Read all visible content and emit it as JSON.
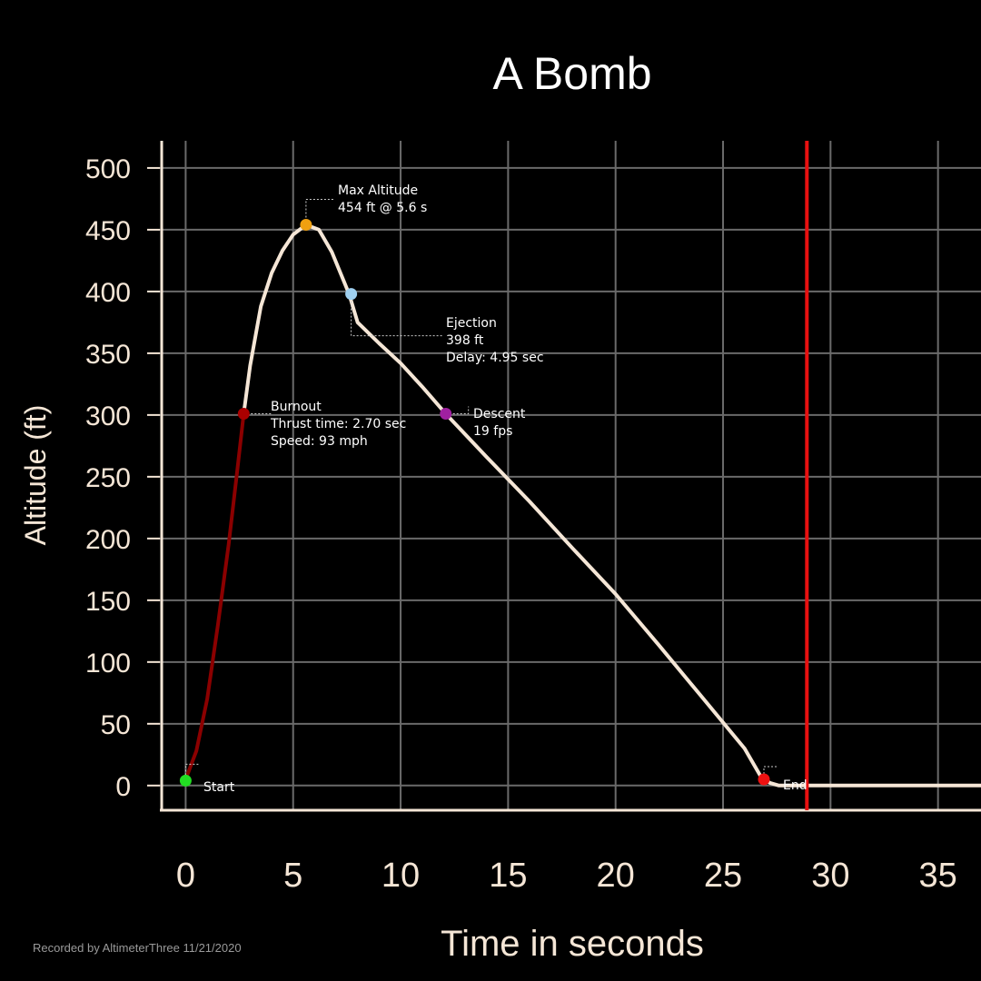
{
  "chart_data": {
    "type": "line",
    "title": "A Bomb",
    "xlabel": "Time in seconds",
    "ylabel": "Altitude (ft)",
    "xlim": [
      -1.2,
      37
    ],
    "ylim": [
      -20,
      522
    ],
    "xticks": [
      0,
      5,
      10,
      15,
      20,
      25,
      30,
      35
    ],
    "yticks": [
      0,
      50,
      100,
      150,
      200,
      250,
      300,
      350,
      400,
      450,
      500
    ],
    "grid": true,
    "series": [
      {
        "segment": "thrust",
        "color": "#8b0000",
        "points": [
          [
            0,
            5
          ],
          [
            0.5,
            28
          ],
          [
            1.0,
            70
          ],
          [
            1.5,
            130
          ],
          [
            2.0,
            195
          ],
          [
            2.4,
            255
          ],
          [
            2.7,
            301
          ]
        ]
      },
      {
        "segment": "coast-and-descent",
        "color": "#f5e6d6",
        "points": [
          [
            2.7,
            301
          ],
          [
            3.0,
            340
          ],
          [
            3.5,
            388
          ],
          [
            4.0,
            415
          ],
          [
            4.5,
            433
          ],
          [
            5.0,
            446
          ],
          [
            5.6,
            454
          ],
          [
            6.2,
            450
          ],
          [
            6.8,
            432
          ],
          [
            7.2,
            415
          ],
          [
            7.6,
            398
          ],
          [
            8.0,
            375
          ],
          [
            9.0,
            358
          ],
          [
            10.0,
            342
          ],
          [
            11.0,
            323
          ],
          [
            12.1,
            301
          ],
          [
            14.0,
            266
          ],
          [
            16.0,
            230
          ],
          [
            18.0,
            192
          ],
          [
            20.0,
            155
          ],
          [
            22.0,
            114
          ],
          [
            24.0,
            72
          ],
          [
            26.0,
            30
          ],
          [
            26.8,
            6
          ],
          [
            27.2,
            2
          ],
          [
            27.6,
            0
          ],
          [
            28.5,
            0
          ],
          [
            30,
            0
          ],
          [
            37,
            0
          ]
        ]
      }
    ],
    "markers": [
      {
        "name": "Start",
        "x": 0,
        "y": 4,
        "color": "#22dd22",
        "lines": [
          "Start"
        ]
      },
      {
        "name": "Burnout",
        "x": 2.7,
        "y": 301,
        "color": "#aa0000",
        "lines": [
          "Burnout",
          "Thrust time: 2.70 sec",
          "Speed: 93 mph"
        ]
      },
      {
        "name": "Max Altitude",
        "x": 5.6,
        "y": 454,
        "color": "#f0a010",
        "lines": [
          "Max Altitude",
          "454 ft @ 5.6 s"
        ]
      },
      {
        "name": "Ejection",
        "x": 7.7,
        "y": 398,
        "color": "#9fd0f0",
        "lines": [
          "Ejection",
          "398 ft",
          "Delay:  4.95 sec"
        ]
      },
      {
        "name": "Descent",
        "x": 12.1,
        "y": 301,
        "color": "#a020a0",
        "lines": [
          "Descent",
          "19 fps"
        ]
      },
      {
        "name": "End",
        "x": 26.9,
        "y": 5,
        "color": "#ee1111",
        "lines": [
          "End"
        ]
      }
    ],
    "vline": {
      "x": 28.9,
      "color": "#e81010"
    }
  },
  "footer": "Recorded by AltimeterThree  11/21/2020"
}
